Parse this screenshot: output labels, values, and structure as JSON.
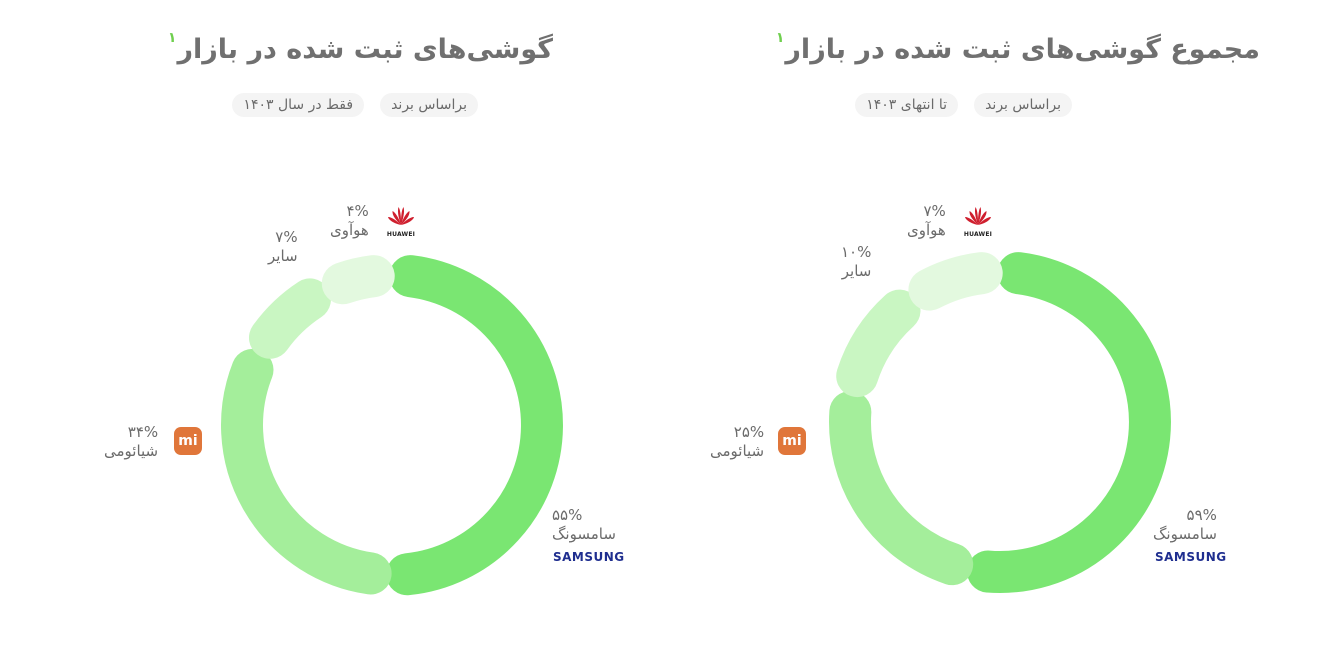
{
  "panels": [
    {
      "title": "گوشی‌های ثبت شده در بازار",
      "footnote": "۱",
      "tags": [
        "براساس برند",
        "فقط در سال ۱۴۰۳"
      ],
      "center_x": 392,
      "labels": {
        "samsung": {
          "value": "۵۵%",
          "name": "سامسونگ",
          "logo": "SAMSUNG"
        },
        "xiaomi": {
          "value": "۳۴%",
          "name": "شیائومی",
          "logo": "mi"
        },
        "other": {
          "value": "۷%",
          "name": "سایر"
        },
        "huawei": {
          "value": "۴%",
          "name": "هوآوی",
          "logo": "HUAWEI"
        }
      }
    },
    {
      "title": "مجموع گوشی‌های ثبت شده در بازار",
      "footnote": "۱",
      "tags": [
        "براساس برند",
        "تا انتهای ۱۴۰۳"
      ],
      "labels": {
        "samsung": {
          "value": "۵۹%",
          "name": "سامسونگ",
          "logo": "SAMSUNG"
        },
        "xiaomi": {
          "value": "۲۵%",
          "name": "شیائومی",
          "logo": "mi"
        },
        "other": {
          "value": "۱۰%",
          "name": "سایر"
        },
        "huawei": {
          "value": "۷%",
          "name": "هوآوی",
          "logo": "HUAWEI"
        }
      }
    }
  ],
  "chart_data": [
    {
      "type": "pie",
      "title": "گوشی‌های ثبت شده در بازار",
      "subtitle": "براساس برند - فقط در سال ۱۴۰۳",
      "categories": [
        "سامسونگ",
        "شیائومی",
        "سایر",
        "هوآوی"
      ],
      "values": [
        55,
        34,
        7,
        4
      ],
      "colors": [
        "#7ae672",
        "#a4ee9b",
        "#c9f6c2",
        "#e3f9df"
      ]
    },
    {
      "type": "pie",
      "title": "مجموع گوشی‌های ثبت شده در بازار",
      "subtitle": "براساس برند - تا انتهای ۱۴۰۳",
      "categories": [
        "سامسونگ",
        "شیائومی",
        "سایر",
        "هوآوی"
      ],
      "values": [
        59,
        25,
        10,
        7
      ],
      "colors": [
        "#7ae672",
        "#a4ee9b",
        "#c9f6c2",
        "#e3f9df"
      ]
    }
  ]
}
